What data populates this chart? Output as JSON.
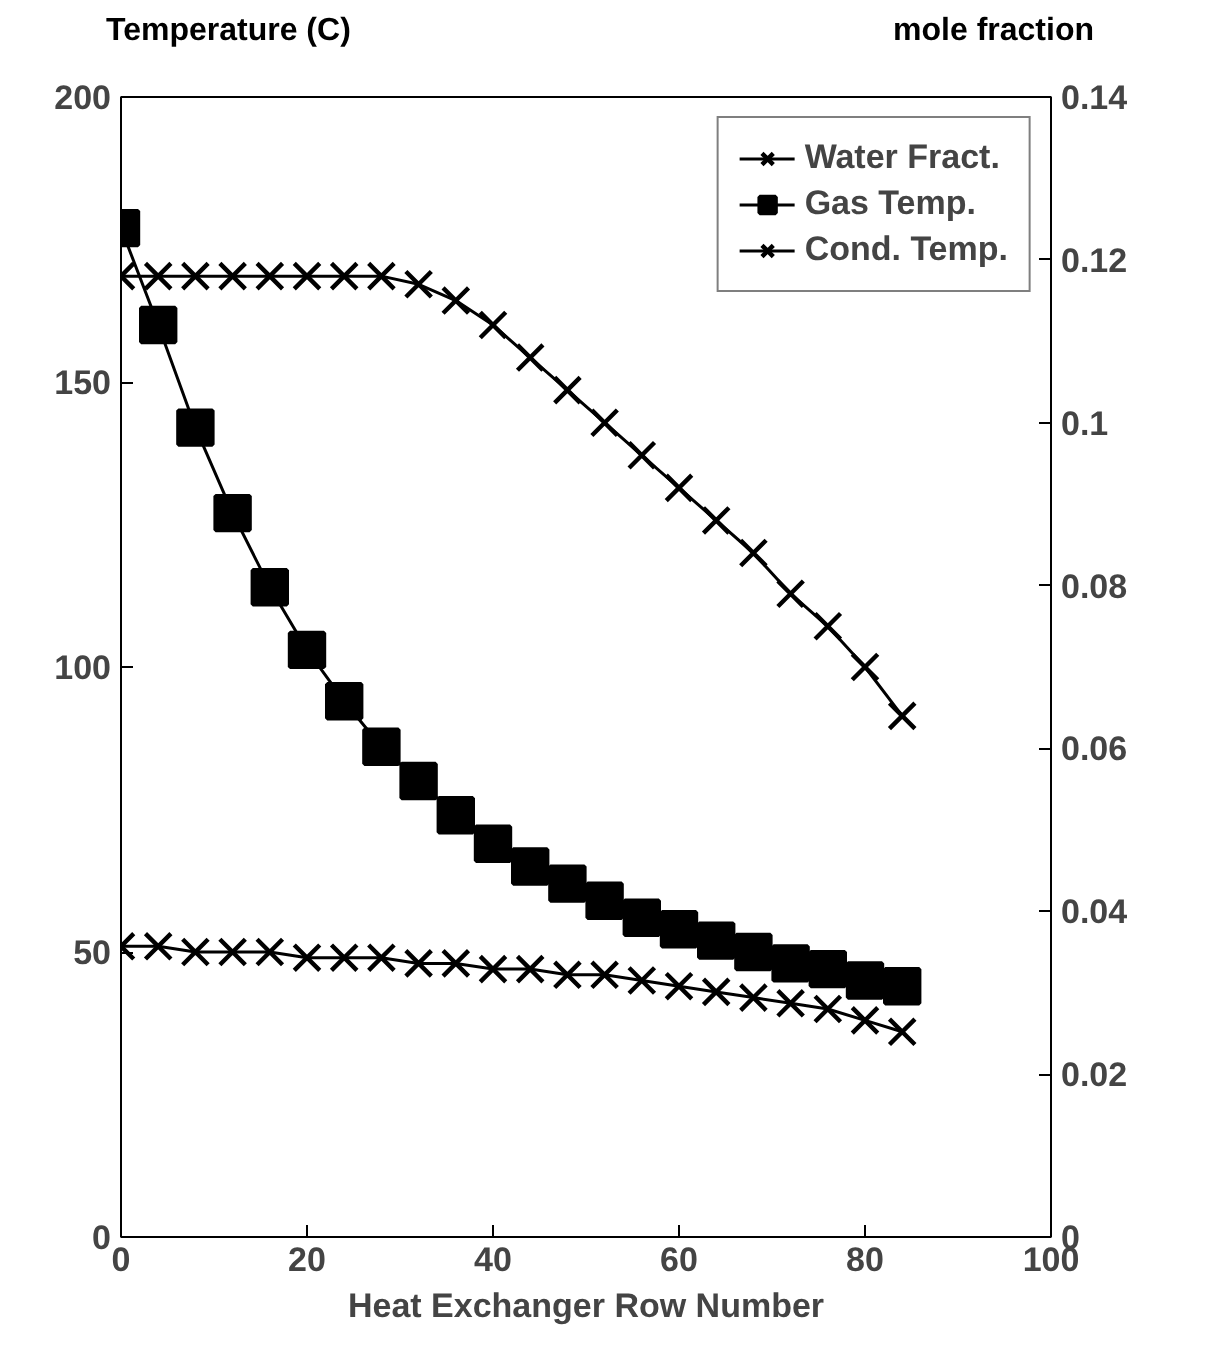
{
  "chart_data": {
    "type": "line",
    "xlabel": "Heat Exchanger Row Number",
    "ylabel": "Temperature (C)",
    "y2label": "mole fraction",
    "x": [
      0,
      4,
      8,
      12,
      16,
      20,
      24,
      28,
      32,
      36,
      40,
      44,
      48,
      52,
      56,
      60,
      64,
      68,
      72,
      76,
      80,
      84
    ],
    "series": [
      {
        "name": "Water Fract.",
        "color": "#000000",
        "axis": "y2",
        "marker": "cross",
        "values": [
          0.118,
          0.118,
          0.118,
          0.118,
          0.118,
          0.118,
          0.118,
          0.118,
          0.117,
          0.115,
          0.112,
          0.108,
          0.104,
          0.1,
          0.096,
          0.092,
          0.088,
          0.084,
          0.079,
          0.075,
          0.07,
          0.064
        ]
      },
      {
        "name": "Gas Temp.",
        "color": "#000000",
        "marker": "square",
        "values": [
          177,
          160,
          142,
          127,
          114,
          103,
          94,
          86,
          80,
          74,
          69,
          65,
          62,
          59,
          56,
          54,
          52,
          50,
          48,
          47,
          45,
          44
        ]
      },
      {
        "name": "Cond. Temp.",
        "color": "#000000",
        "marker": "cross",
        "values": [
          51,
          51,
          50,
          50,
          50,
          49,
          49,
          49,
          48,
          48,
          47,
          47,
          46,
          46,
          45,
          44,
          43,
          42,
          41,
          40,
          38,
          36
        ]
      }
    ],
    "xlim": [
      0,
      100
    ],
    "xticks": [
      0,
      20,
      40,
      60,
      80,
      100
    ],
    "ylim": [
      0,
      200
    ],
    "yticks": [
      0,
      50,
      100,
      150,
      200
    ],
    "y2lim": [
      0,
      0.14
    ],
    "y2ticks": [
      0,
      0.02,
      0.04,
      0.06,
      0.08,
      0.1,
      0.12,
      0.14
    ],
    "grid": false,
    "legend": "top right",
    "line_style": "solid"
  }
}
